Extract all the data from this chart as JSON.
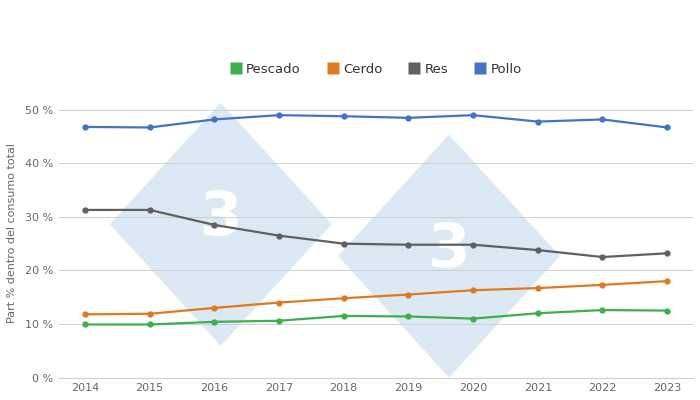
{
  "years": [
    2014,
    2015,
    2016,
    2017,
    2018,
    2019,
    2020,
    2021,
    2022,
    2023
  ],
  "pescado": [
    9.9,
    9.9,
    10.4,
    10.6,
    11.5,
    11.4,
    11.0,
    12.0,
    12.6,
    12.5
  ],
  "cerdo": [
    11.8,
    11.9,
    13.0,
    14.0,
    14.8,
    15.5,
    16.3,
    16.7,
    17.3,
    18.0
  ],
  "res": [
    31.3,
    31.3,
    28.5,
    26.5,
    25.0,
    24.8,
    24.8,
    23.8,
    22.5,
    23.2
  ],
  "pollo": [
    46.8,
    46.7,
    48.2,
    49.0,
    48.8,
    48.5,
    49.0,
    47.8,
    48.2,
    46.7
  ],
  "colors": {
    "pescado": "#3daf4e",
    "cerdo": "#e07820",
    "res": "#606060",
    "pollo": "#4472c4"
  },
  "ylabel": "Part % dentro del consumo total",
  "ylim": [
    0,
    54
  ],
  "yticks": [
    0,
    10,
    20,
    30,
    40,
    50
  ],
  "ytick_labels": [
    "0 %",
    "10 %",
    "20 %",
    "30 %",
    "40 %",
    "50 %"
  ],
  "bg_color": "#ffffff",
  "grid_color": "#d0d0d0",
  "watermark_fill": "#dce9f5",
  "watermark_text": "#ffffff",
  "line_width": 1.6,
  "marker": "o",
  "marker_size": 3.5
}
